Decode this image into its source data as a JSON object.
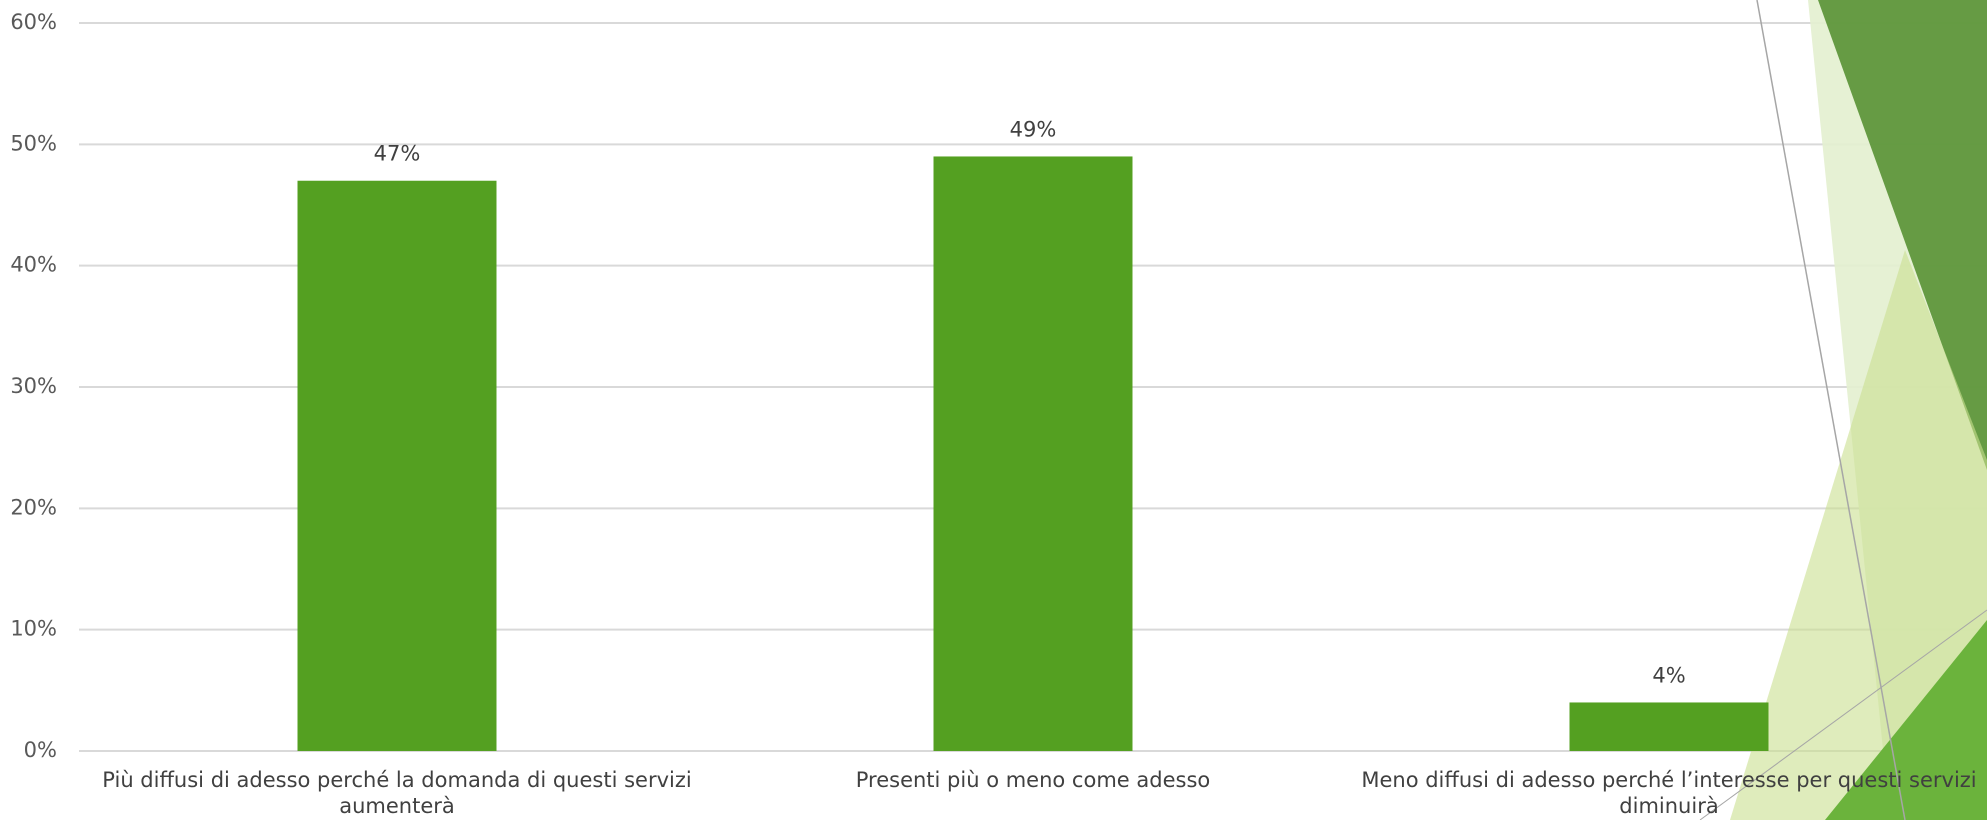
{
  "chart_data": {
    "type": "bar",
    "categories": [
      "Più diffusi di adesso perché la domanda di questi servizi aumenterà",
      "Presenti più o meno come adesso",
      "Meno diffusi di adesso perché l’interesse per questi servizi diminuirà"
    ],
    "values": [
      47,
      49,
      4
    ],
    "value_labels": [
      "47%",
      "49%",
      "4%"
    ],
    "color": "#54a021",
    "ylim": [
      0,
      60
    ],
    "yticks": [
      {
        "value": 0,
        "label": "0%"
      },
      {
        "value": 10,
        "label": "10%"
      },
      {
        "value": 20,
        "label": "20%"
      },
      {
        "value": 30,
        "label": "30%"
      },
      {
        "value": 40,
        "label": "40%"
      },
      {
        "value": 50,
        "label": "50%"
      },
      {
        "value": 60,
        "label": "60%"
      }
    ],
    "grid": true
  }
}
